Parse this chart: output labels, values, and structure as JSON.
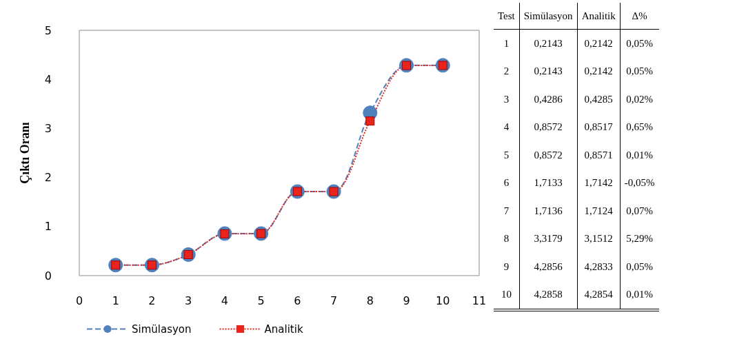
{
  "chart_data": {
    "type": "line",
    "ylabel": "Çıktı Oranı",
    "x": [
      1,
      2,
      3,
      4,
      5,
      6,
      7,
      8,
      9,
      10
    ],
    "xlim": [
      0,
      11
    ],
    "xticks": [
      0,
      1,
      2,
      3,
      4,
      5,
      6,
      7,
      8,
      9,
      10,
      11
    ],
    "ylim": [
      0,
      5
    ],
    "yticks": [
      0,
      1,
      2,
      3,
      4,
      5
    ],
    "grid": false,
    "legend": "bottom",
    "series": [
      {
        "name": "Simülasyon",
        "color": "#4f81bd",
        "marker": "circle",
        "line_style": "dashed",
        "values": [
          0.2143,
          0.2143,
          0.4286,
          0.8572,
          0.8572,
          1.7133,
          1.7136,
          3.3179,
          4.2856,
          4.2858
        ]
      },
      {
        "name": "Analitik",
        "color": "#e8241c",
        "marker": "square",
        "line_style": "dotted",
        "values": [
          0.2142,
          0.2142,
          0.4285,
          0.8517,
          0.8571,
          1.7142,
          1.7124,
          3.1512,
          4.2833,
          4.2854
        ]
      }
    ],
    "annotations": [
      "Test",
      "Simülasyon",
      "Analitik",
      "Δ%",
      "1",
      "0,2143",
      "0,2142",
      "0,05%",
      "2",
      "0,2143",
      "0,2142",
      "0,05%",
      "3",
      "0,4286",
      "0,4285",
      "0,02%",
      "4",
      "0,8572",
      "0,8517",
      "0,65%",
      "5",
      "0,8572",
      "0,8571",
      "0,01%",
      "6",
      "1,7133",
      "1,7142",
      "-0,05%",
      "7",
      "1,7136",
      "1,7124",
      "0,07%",
      "8",
      "3,3179",
      "3,1512",
      "5,29%",
      "9",
      "4,2856",
      "4,2833",
      "0,05%",
      "10",
      "4,2858",
      "4,2854",
      "0,01%"
    ]
  }
}
